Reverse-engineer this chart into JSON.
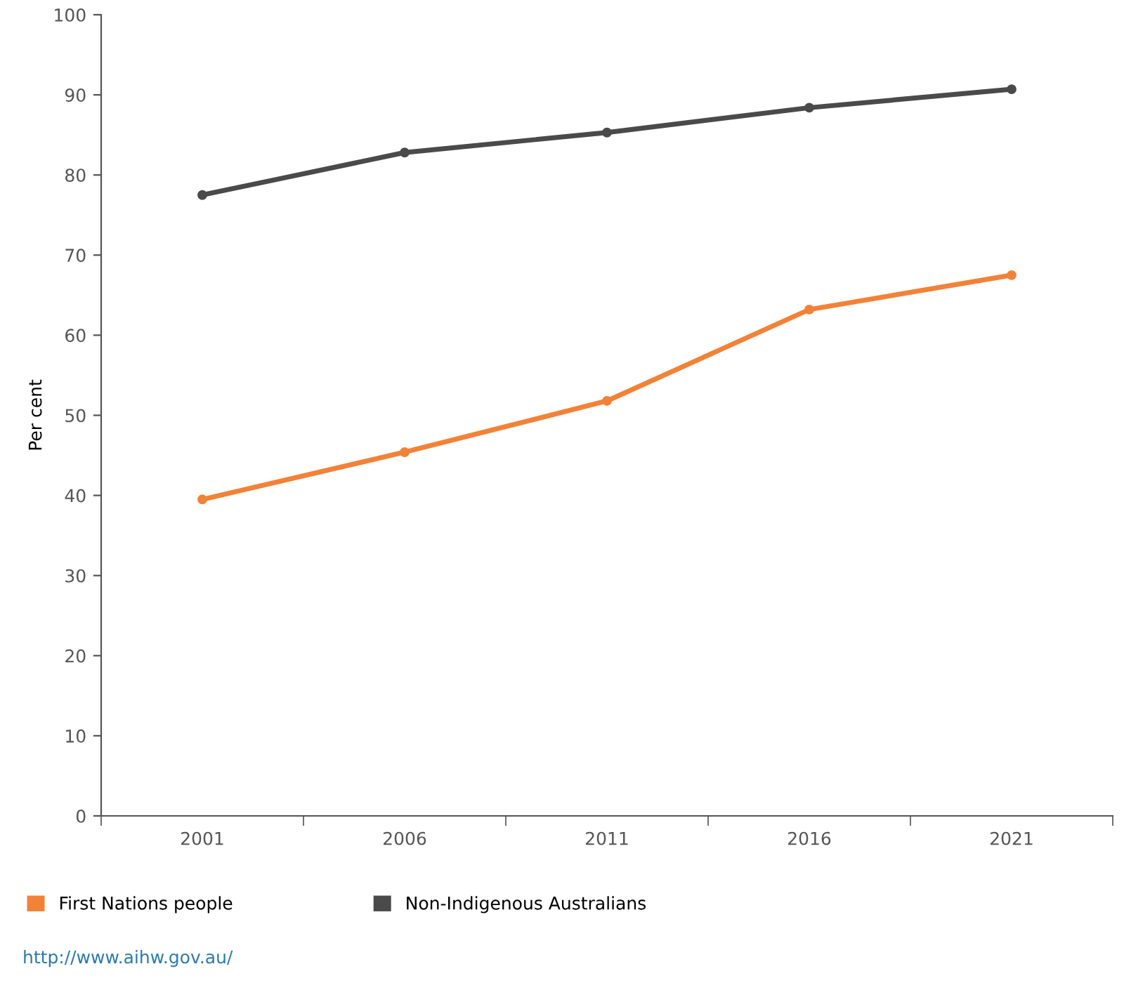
{
  "chart_data": {
    "type": "line",
    "ylabel": "Per cent",
    "categories": [
      "2001",
      "2006",
      "2011",
      "2016",
      "2021"
    ],
    "series": [
      {
        "name": "First Nations people",
        "color": "#f28238",
        "values": [
          39.5,
          45.4,
          51.8,
          63.2,
          67.5
        ]
      },
      {
        "name": "Non-Indigenous Australians",
        "color": "#4a4a4a",
        "values": [
          77.5,
          82.8,
          85.3,
          88.4,
          90.7
        ]
      }
    ],
    "ylim": [
      0,
      100
    ],
    "yticks": [
      0,
      10,
      20,
      30,
      40,
      50,
      60,
      70,
      80,
      90,
      100
    ],
    "marker": "circle",
    "line_style": "solid",
    "grid": false,
    "legend": "bottom",
    "annotations": [
      "http://www.aihw.gov.au/"
    ]
  }
}
